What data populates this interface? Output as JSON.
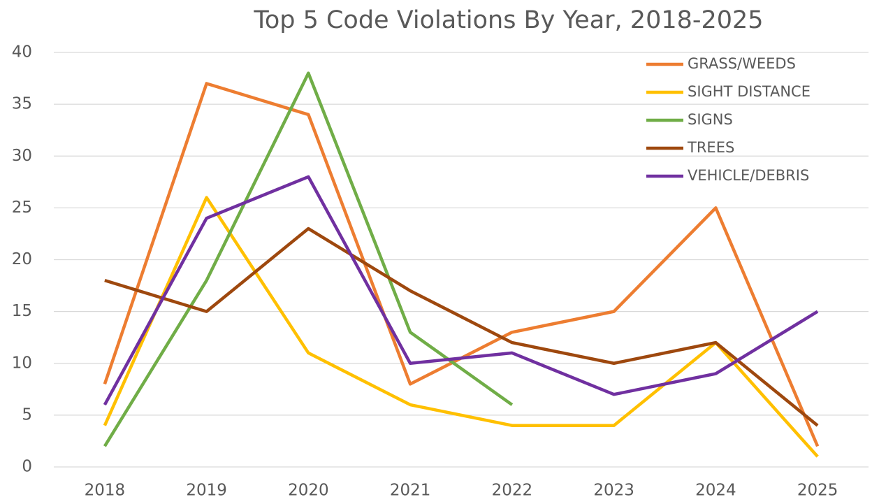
{
  "chart_data": {
    "type": "line",
    "title": "Top 5 Code Violations By Year, 2018-2025",
    "categories": [
      "2018",
      "2019",
      "2020",
      "2021",
      "2022",
      "2023",
      "2024",
      "2025"
    ],
    "series": [
      {
        "name": "GRASS/WEEDS",
        "color": "#ED7D31",
        "values": [
          8,
          37,
          34,
          8,
          13,
          15,
          25,
          2
        ]
      },
      {
        "name": "SIGHT DISTANCE",
        "color": "#FFC000",
        "values": [
          4,
          26,
          11,
          6,
          4,
          4,
          12,
          1
        ]
      },
      {
        "name": "SIGNS",
        "color": "#70AD47",
        "values": [
          2,
          18,
          38,
          13,
          6,
          null,
          null,
          null
        ]
      },
      {
        "name": "TREES",
        "color": "#9E480E",
        "values": [
          18,
          15,
          23,
          17,
          12,
          10,
          12,
          4
        ]
      },
      {
        "name": "VEHICLE/DEBRIS",
        "color": "#7030A0",
        "values": [
          6,
          24,
          28,
          10,
          11,
          7,
          9,
          15
        ]
      }
    ],
    "ylim": [
      0,
      40
    ],
    "yticks": [
      0,
      5,
      10,
      15,
      20,
      25,
      30,
      35,
      40
    ],
    "grid": true,
    "legend": "top-right"
  }
}
